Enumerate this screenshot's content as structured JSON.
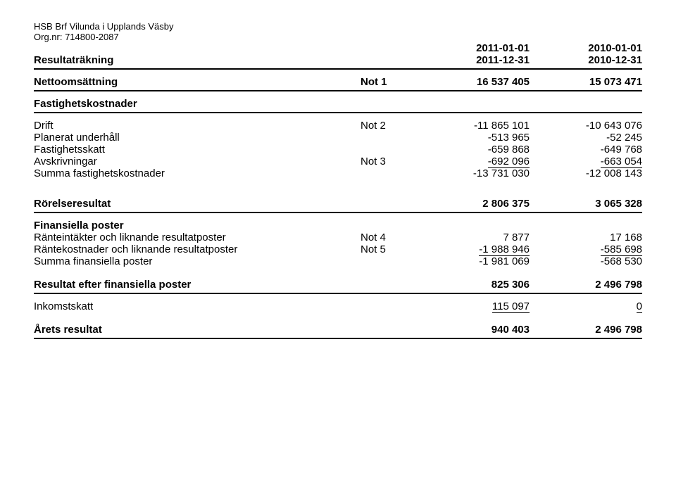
{
  "header": {
    "org_name": "HSB Brf Vilunda i Upplands Väsby",
    "org_nr_label": "Org.nr: 714800-2087",
    "report_title": "Resultaträkning",
    "period_current_start": "2011-01-01",
    "period_current_end": "2011-12-31",
    "period_prior_start": "2010-01-01",
    "period_prior_end": "2010-12-31"
  },
  "netto": {
    "label": "Nettoomsättning",
    "not": "Not 1",
    "v1": "16 537 405",
    "v2": "15 073 471"
  },
  "fastighetskostnader_hdr": "Fastighetskostnader",
  "drift": {
    "label": "Drift",
    "not": "Not 2",
    "v1": "-11 865 101",
    "v2": "-10 643 076"
  },
  "planerat": {
    "label": "Planerat underhåll",
    "v1": "-513 965",
    "v2": "-52 245"
  },
  "fskatt": {
    "label": "Fastighetsskatt",
    "v1": "-659 868",
    "v2": "-649 768"
  },
  "avskriv": {
    "label": "Avskrivningar",
    "not": "Not 3",
    "v1": "-692 096",
    "v2": "-663 054"
  },
  "summa_fast": {
    "label": "Summa fastighetskostnader",
    "v1": "-13 731 030",
    "v2": "-12 008 143"
  },
  "rorelse": {
    "label": "Rörelseresultat",
    "v1": "2 806 375",
    "v2": "3 065 328"
  },
  "fin_hdr": "Finansiella poster",
  "rantei": {
    "label": "Ränteintäkter och liknande resultatposter",
    "not": "Not 4",
    "v1": "7 877",
    "v2": "17 168"
  },
  "rantek": {
    "label": "Räntekostnader och liknande resultatposter",
    "not": "Not 5",
    "v1": "-1 988 946",
    "v2": "-585 698"
  },
  "summa_fin": {
    "label": "Summa finansiella poster",
    "v1": "-1 981 069",
    "v2": "-568 530"
  },
  "res_efter": {
    "label": "Resultat efter finansiella poster",
    "v1": "825 306",
    "v2": "2 496 798"
  },
  "inkomst": {
    "label": "Inkomstskatt",
    "v1": "115 097",
    "v2": "0"
  },
  "arets": {
    "label": "Årets resultat",
    "v1": "940 403",
    "v2": "2 496 798"
  }
}
